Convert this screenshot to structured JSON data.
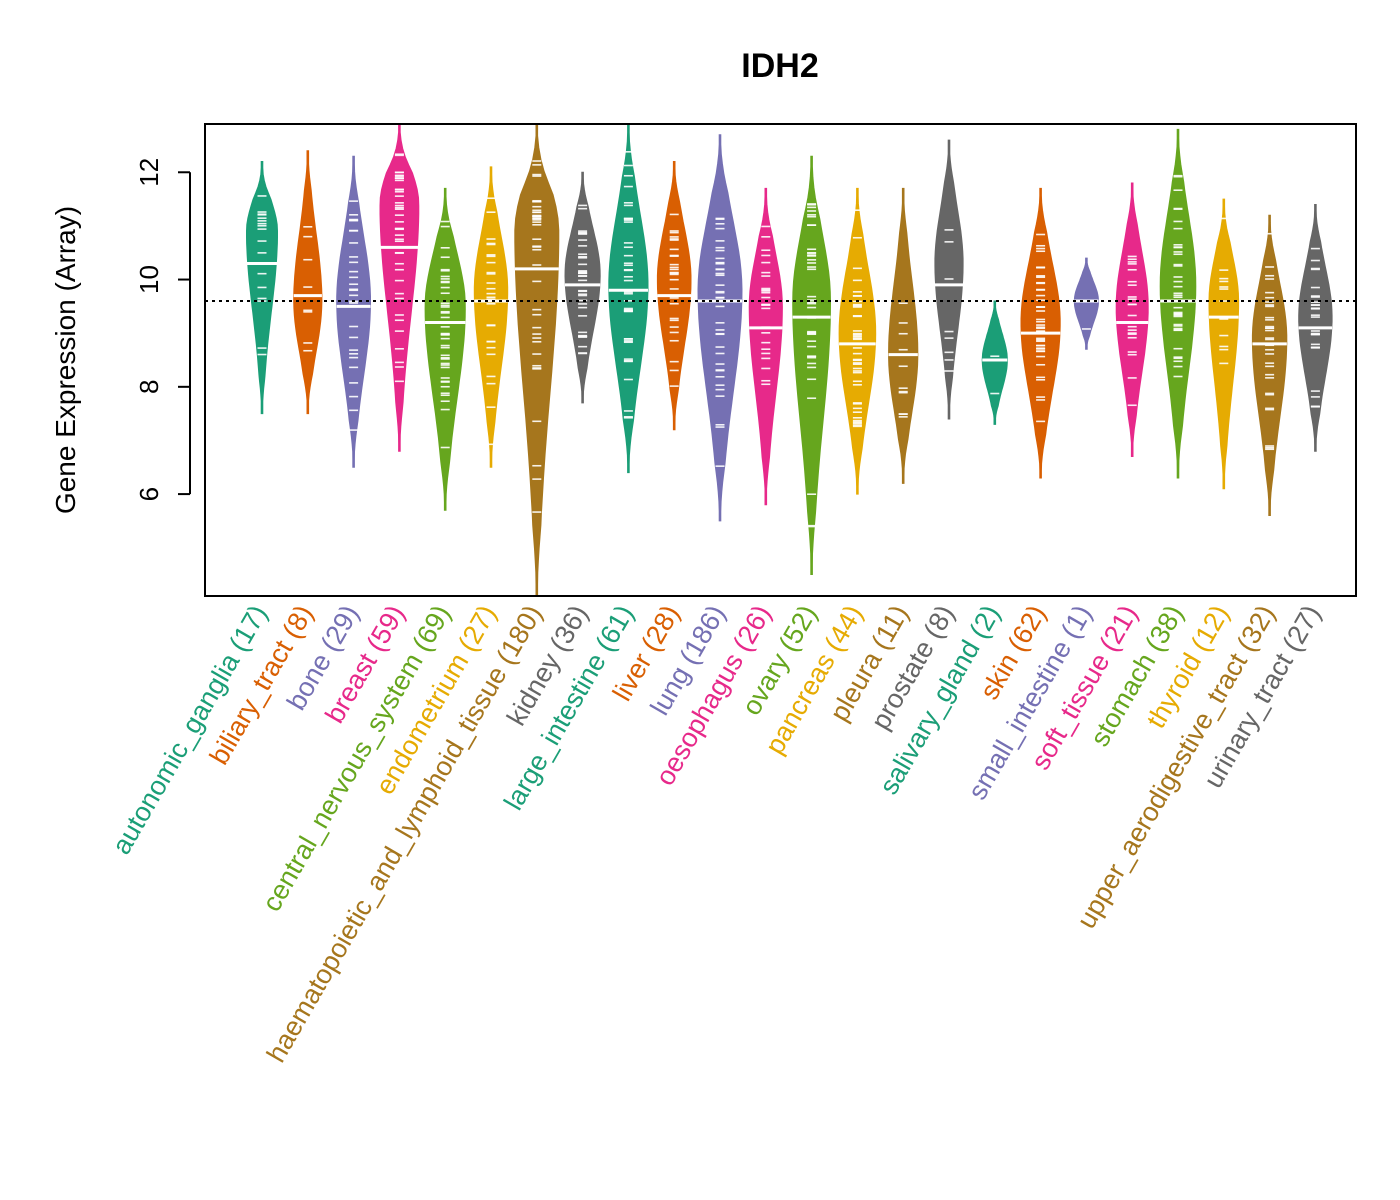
{
  "chart_data": {
    "type": "beanplot",
    "title": "IDH2",
    "xlabel": "",
    "ylabel": "Gene Expression (Array)",
    "ylim": [
      4.1,
      12.9
    ],
    "yticks": [
      6,
      8,
      10,
      12
    ],
    "reference_line": 9.6,
    "categories": [
      {
        "name": "autonomic_ganglia",
        "n": 17,
        "color": "#1B9E77",
        "min": 7.5,
        "max": 12.2,
        "median": 10.3,
        "peak": 10.9
      },
      {
        "name": "biliary_tract",
        "n": 8,
        "color": "#D95F02",
        "min": 7.5,
        "max": 12.4,
        "median": 9.7,
        "peak": 9.6
      },
      {
        "name": "bone",
        "n": 29,
        "color": "#7570B3",
        "min": 6.5,
        "max": 12.3,
        "median": 9.5,
        "peak": 9.6
      },
      {
        "name": "breast",
        "n": 59,
        "color": "#E7298A",
        "min": 6.8,
        "max": 12.9,
        "median": 10.6,
        "peak": 11.4
      },
      {
        "name": "central_nervous_system",
        "n": 69,
        "color": "#66A61E",
        "min": 5.7,
        "max": 11.7,
        "median": 9.2,
        "peak": 9.5
      },
      {
        "name": "endometrium",
        "n": 27,
        "color": "#E6AB02",
        "min": 6.5,
        "max": 12.1,
        "median": 9.6,
        "peak": 9.8
      },
      {
        "name": "haematopoietic_and_lymphoid_tissue",
        "n": 180,
        "color": "#A6761D",
        "min": 4.1,
        "max": 12.9,
        "median": 10.2,
        "peak": 10.9
      },
      {
        "name": "kidney",
        "n": 36,
        "color": "#666666",
        "min": 7.7,
        "max": 12.0,
        "median": 9.9,
        "peak": 10.1
      },
      {
        "name": "large_intestine",
        "n": 61,
        "color": "#1B9E77",
        "min": 6.4,
        "max": 12.9,
        "median": 9.8,
        "peak": 9.9
      },
      {
        "name": "liver",
        "n": 28,
        "color": "#D95F02",
        "min": 7.2,
        "max": 12.2,
        "median": 9.7,
        "peak": 10.0
      },
      {
        "name": "lung",
        "n": 186,
        "color": "#7570B3",
        "min": 5.5,
        "max": 12.7,
        "median": 9.6,
        "peak": 9.8
      },
      {
        "name": "oesophagus",
        "n": 26,
        "color": "#E7298A",
        "min": 5.8,
        "max": 11.7,
        "median": 9.1,
        "peak": 9.5
      },
      {
        "name": "ovary",
        "n": 52,
        "color": "#66A61E",
        "min": 4.5,
        "max": 12.3,
        "median": 9.3,
        "peak": 9.6
      },
      {
        "name": "pancreas",
        "n": 44,
        "color": "#E6AB02",
        "min": 6.0,
        "max": 11.7,
        "median": 8.8,
        "peak": 9.0
      },
      {
        "name": "pleura",
        "n": 11,
        "color": "#A6761D",
        "min": 6.2,
        "max": 11.7,
        "median": 8.6,
        "peak": 8.6
      },
      {
        "name": "prostate",
        "n": 8,
        "color": "#666666",
        "min": 7.4,
        "max": 12.6,
        "median": 9.9,
        "peak": 10.3
      },
      {
        "name": "salivary_gland",
        "n": 2,
        "color": "#1B9E77",
        "min": 7.3,
        "max": 9.6,
        "median": 8.5,
        "peak": 8.5
      },
      {
        "name": "skin",
        "n": 62,
        "color": "#D95F02",
        "min": 6.3,
        "max": 11.7,
        "median": 9.0,
        "peak": 9.2
      },
      {
        "name": "small_intestine",
        "n": 1,
        "color": "#7570B3",
        "min": 8.7,
        "max": 10.4,
        "median": 9.6,
        "peak": 9.6
      },
      {
        "name": "soft_tissue",
        "n": 21,
        "color": "#E7298A",
        "min": 6.7,
        "max": 11.8,
        "median": 9.2,
        "peak": 9.5
      },
      {
        "name": "stomach",
        "n": 38,
        "color": "#66A61E",
        "min": 6.3,
        "max": 12.8,
        "median": 9.6,
        "peak": 9.9
      },
      {
        "name": "thyroid",
        "n": 12,
        "color": "#E6AB02",
        "min": 6.1,
        "max": 11.5,
        "median": 9.3,
        "peak": 9.6
      },
      {
        "name": "upper_aerodigestive_tract",
        "n": 32,
        "color": "#A6761D",
        "min": 5.6,
        "max": 11.2,
        "median": 8.8,
        "peak": 8.9
      },
      {
        "name": "urinary_tract",
        "n": 27,
        "color": "#666666",
        "min": 6.8,
        "max": 11.4,
        "median": 9.1,
        "peak": 9.3
      }
    ]
  }
}
